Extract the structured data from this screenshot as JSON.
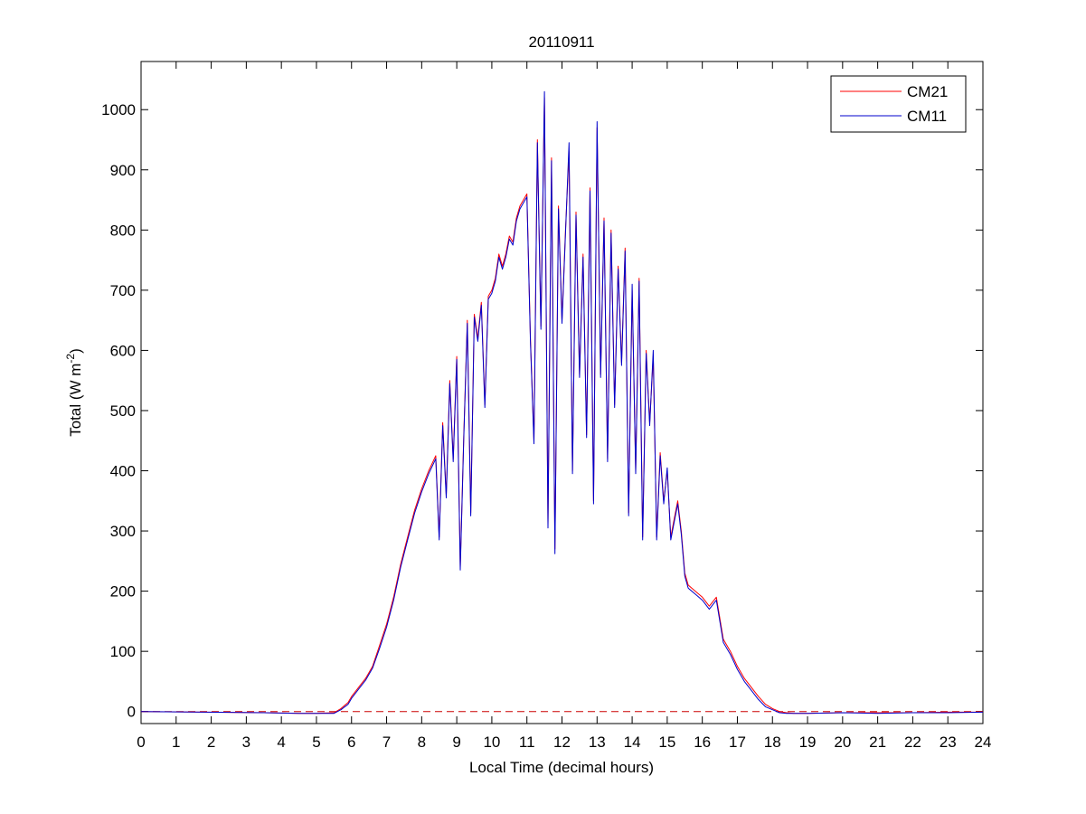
{
  "chart_data": {
    "type": "line",
    "title": "20110911",
    "xlabel": "Local Time (decimal hours)",
    "ylabel": "Total (W m",
    "ylabel_superscript": "-2",
    "ylabel_close": ")",
    "xlim": [
      0,
      24
    ],
    "ylim": [
      -20,
      1080
    ],
    "xticks": [
      0,
      1,
      2,
      3,
      4,
      5,
      6,
      7,
      8,
      9,
      10,
      11,
      12,
      13,
      14,
      15,
      16,
      17,
      18,
      19,
      20,
      21,
      22,
      23,
      24
    ],
    "yticks": [
      0,
      100,
      200,
      300,
      400,
      500,
      600,
      700,
      800,
      900,
      1000
    ],
    "grid": false,
    "legend_position": "top-right",
    "reference_line": {
      "y": 0,
      "style": "dashed",
      "color": "#cc0000"
    },
    "series": [
      {
        "name": "CM21",
        "color": "#ff0000",
        "x": [
          0,
          3.5,
          4.5,
          5.0,
          5.5,
          5.7,
          5.9,
          6.0,
          6.2,
          6.4,
          6.6,
          6.8,
          7.0,
          7.2,
          7.4,
          7.6,
          7.8,
          8.0,
          8.2,
          8.4,
          8.5,
          8.6,
          8.7,
          8.8,
          8.9,
          9.0,
          9.1,
          9.2,
          9.3,
          9.4,
          9.5,
          9.6,
          9.7,
          9.8,
          9.9,
          10.0,
          10.1,
          10.2,
          10.3,
          10.4,
          10.5,
          10.6,
          10.7,
          10.8,
          10.9,
          11.0,
          11.1,
          11.2,
          11.3,
          11.4,
          11.5,
          11.6,
          11.7,
          11.8,
          11.9,
          12.0,
          12.1,
          12.2,
          12.3,
          12.4,
          12.5,
          12.6,
          12.7,
          12.8,
          12.9,
          13.0,
          13.1,
          13.2,
          13.3,
          13.4,
          13.5,
          13.6,
          13.7,
          13.8,
          13.9,
          14.0,
          14.1,
          14.2,
          14.3,
          14.4,
          14.5,
          14.6,
          14.7,
          14.8,
          14.9,
          15.0,
          15.1,
          15.2,
          15.3,
          15.4,
          15.5,
          15.6,
          15.8,
          16.0,
          16.2,
          16.4,
          16.6,
          16.8,
          17.0,
          17.2,
          17.4,
          17.6,
          17.8,
          18.0,
          18.2,
          18.4,
          18.6,
          19.0,
          20.0,
          21.0,
          22.0,
          23.0,
          24.0
        ],
        "y": [
          0,
          -2,
          -3,
          -3,
          -2,
          5,
          15,
          25,
          40,
          55,
          75,
          110,
          145,
          190,
          245,
          290,
          335,
          370,
          400,
          425,
          290,
          480,
          360,
          550,
          420,
          590,
          240,
          460,
          650,
          330,
          660,
          620,
          680,
          510,
          690,
          700,
          720,
          760,
          740,
          760,
          790,
          780,
          820,
          840,
          850,
          860,
          620,
          450,
          950,
          640,
          1020,
          310,
          920,
          270,
          840,
          650,
          800,
          930,
          400,
          830,
          560,
          760,
          460,
          870,
          350,
          970,
          560,
          820,
          420,
          800,
          510,
          740,
          580,
          770,
          330,
          700,
          400,
          720,
          290,
          600,
          480,
          590,
          290,
          430,
          350,
          400,
          290,
          320,
          350,
          300,
          230,
          210,
          200,
          190,
          175,
          190,
          120,
          100,
          75,
          55,
          40,
          25,
          12,
          5,
          0,
          -2,
          -3,
          -3,
          -2,
          -2,
          -2,
          -1,
          -1
        ]
      },
      {
        "name": "CM11",
        "color": "#0000cc",
        "x": [
          0,
          3.5,
          4.5,
          5.0,
          5.5,
          5.7,
          5.9,
          6.0,
          6.2,
          6.4,
          6.6,
          6.8,
          7.0,
          7.2,
          7.4,
          7.6,
          7.8,
          8.0,
          8.2,
          8.4,
          8.5,
          8.6,
          8.7,
          8.8,
          8.9,
          9.0,
          9.1,
          9.2,
          9.3,
          9.4,
          9.5,
          9.6,
          9.7,
          9.8,
          9.9,
          10.0,
          10.1,
          10.2,
          10.3,
          10.4,
          10.5,
          10.6,
          10.7,
          10.8,
          10.9,
          11.0,
          11.1,
          11.2,
          11.3,
          11.4,
          11.5,
          11.6,
          11.7,
          11.8,
          11.9,
          12.0,
          12.1,
          12.2,
          12.3,
          12.4,
          12.5,
          12.6,
          12.7,
          12.8,
          12.9,
          13.0,
          13.1,
          13.2,
          13.3,
          13.4,
          13.5,
          13.6,
          13.7,
          13.8,
          13.9,
          14.0,
          14.1,
          14.2,
          14.3,
          14.4,
          14.5,
          14.6,
          14.7,
          14.8,
          14.9,
          15.0,
          15.1,
          15.2,
          15.3,
          15.4,
          15.5,
          15.6,
          15.8,
          16.0,
          16.2,
          16.4,
          16.6,
          16.8,
          17.0,
          17.2,
          17.4,
          17.6,
          17.8,
          18.0,
          18.2,
          18.4,
          18.6,
          19.0,
          20.0,
          21.0,
          22.0,
          23.0,
          24.0
        ],
        "y": [
          0,
          -2,
          -3,
          -3,
          -3,
          3,
          12,
          22,
          37,
          52,
          72,
          105,
          140,
          185,
          240,
          285,
          330,
          365,
          395,
          420,
          285,
          475,
          355,
          545,
          415,
          585,
          235,
          455,
          645,
          325,
          655,
          615,
          675,
          505,
          685,
          695,
          715,
          755,
          735,
          755,
          785,
          775,
          815,
          835,
          845,
          855,
          615,
          445,
          945,
          635,
          1030,
          305,
          915,
          262,
          835,
          645,
          795,
          945,
          395,
          825,
          555,
          755,
          455,
          865,
          345,
          980,
          555,
          815,
          415,
          795,
          505,
          735,
          575,
          765,
          325,
          710,
          395,
          715,
          285,
          595,
          475,
          600,
          285,
          425,
          345,
          405,
          285,
          315,
          345,
          295,
          225,
          205,
          195,
          185,
          170,
          185,
          115,
          95,
          70,
          50,
          35,
          20,
          8,
          3,
          -2,
          -3,
          -3,
          -3,
          -2,
          -3,
          -2,
          -2,
          -1
        ]
      }
    ]
  }
}
